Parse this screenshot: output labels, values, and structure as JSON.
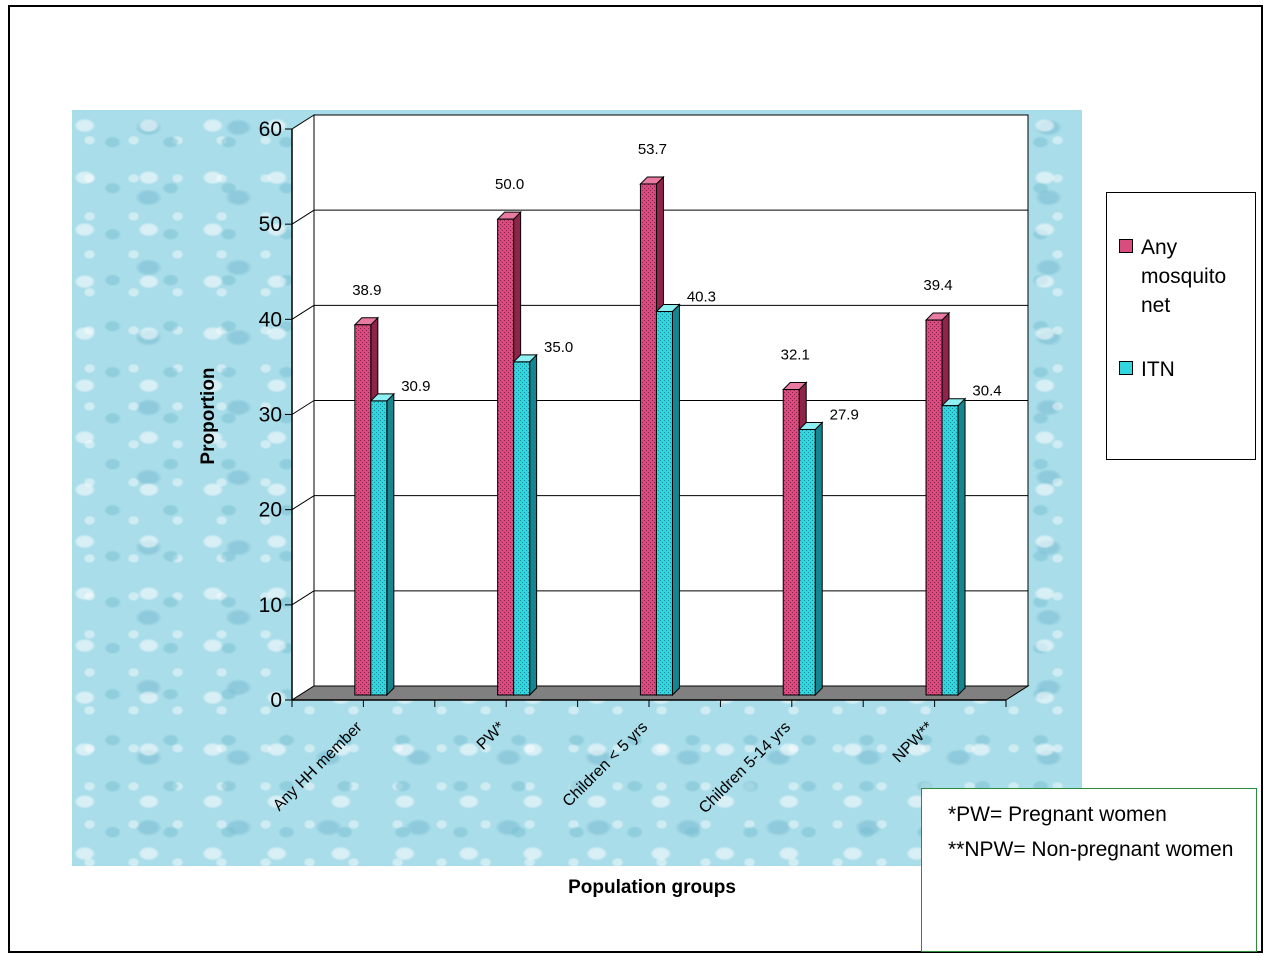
{
  "chart_data": {
    "type": "bar",
    "categories": [
      "Any HH member",
      "PW*",
      "Children < 5 yrs",
      "Children 5-14 yrs",
      "NPW**"
    ],
    "series": [
      {
        "name": "Any mosquito net",
        "values": [
          38.9,
          50.0,
          53.7,
          32.1,
          39.4
        ],
        "labels": [
          "38.9",
          "50.0",
          "53.7",
          "32.1",
          "39.4"
        ],
        "color": "#d84c7e"
      },
      {
        "name": "ITN",
        "values": [
          30.9,
          35.0,
          40.3,
          27.9,
          30.4
        ],
        "labels": [
          "30.9",
          "35.0",
          "40.3",
          "27.9",
          "30.4"
        ],
        "color": "#33d6df"
      }
    ],
    "xlabel": "Population groups",
    "ylabel": "Proportion",
    "ylim": [
      0,
      60
    ],
    "yticks": [
      "0",
      "10",
      "20",
      "30",
      "40",
      "50",
      "60"
    ],
    "grid": true,
    "legend_position": "right",
    "style": "3d-column"
  },
  "footnotes": [
    "*PW= Pregnant women",
    "**NPW= Non-pregnant women"
  ]
}
